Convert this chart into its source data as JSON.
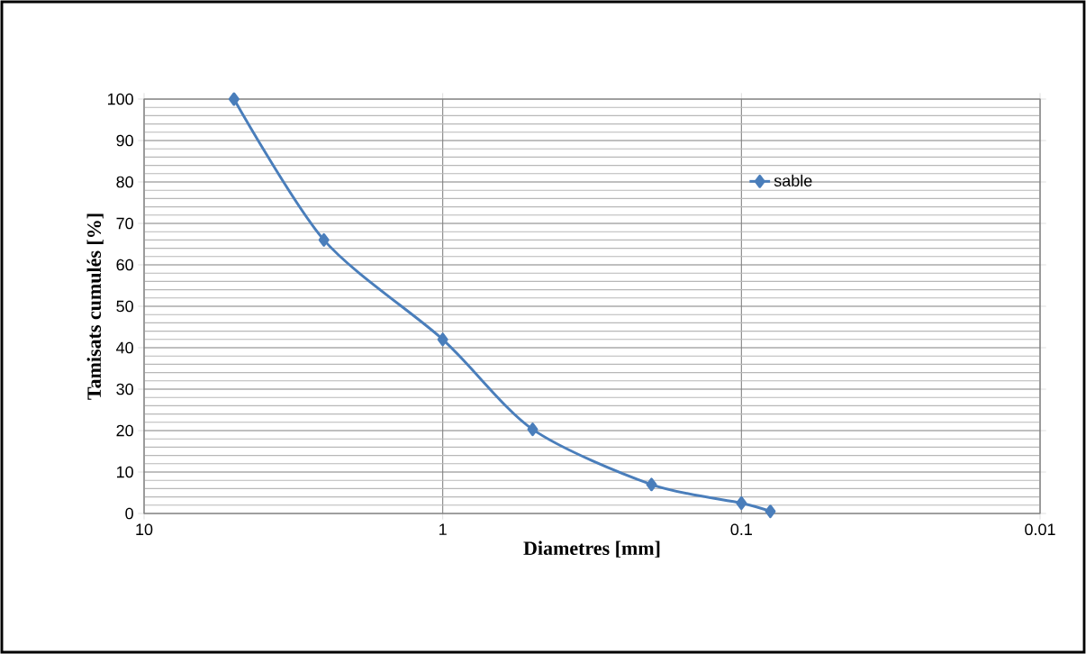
{
  "chart_data": {
    "type": "line",
    "xlabel": "Diametres [mm]",
    "ylabel": "Tamisats cumulés [%]",
    "x": [
      5,
      2.5,
      1,
      0.5,
      0.2,
      0.1,
      0.08
    ],
    "series": [
      {
        "name": "sable",
        "color": "#4a7ebb",
        "values": [
          100,
          66,
          42,
          20.3,
          7,
          2.5,
          0.5
        ]
      }
    ],
    "log": "x",
    "xlim": [
      10,
      0.01
    ],
    "xticks": [
      10,
      1,
      0.1,
      0.01
    ],
    "ylim": [
      0,
      100
    ],
    "yticks": [
      0,
      10,
      20,
      30,
      40,
      50,
      60,
      70,
      80,
      90,
      100
    ],
    "grid": true,
    "legend": "top right",
    "marker": "diamond",
    "line_style": "solid"
  }
}
